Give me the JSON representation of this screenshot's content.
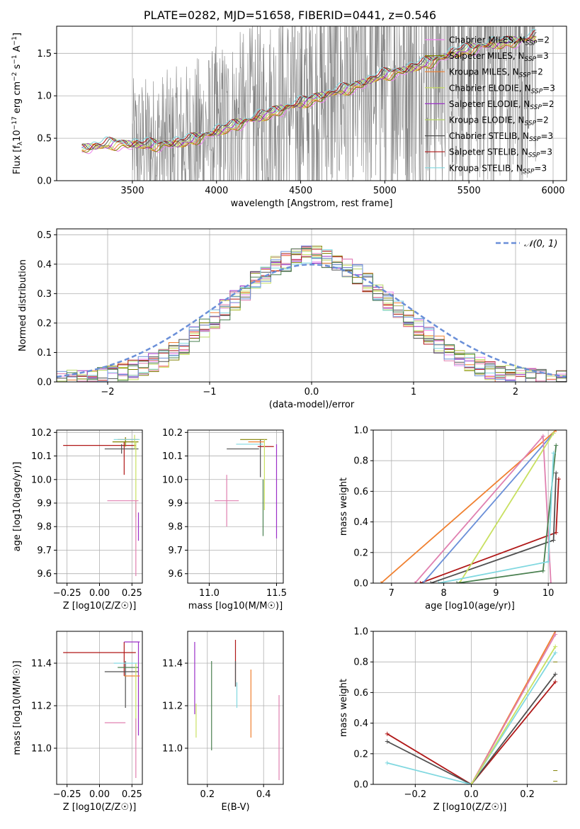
{
  "title": "PLATE=0282, MJD=51658, FIBERID=0441, z=0.546",
  "colors": {
    "Chabrier MILES": "#ee82ee",
    "Salpeter MILES": "#808000",
    "Kroupa MILES": "#f0a030",
    "Chabrier ELODIE": "#c8e060",
    "Salpeter ELODIE": "#9b30c8",
    "Kroupa ELODIE": "#b8d868",
    "Chabrier STELIB": "#505050",
    "Salpeter STELIB": "#b01818",
    "Kroupa STELIB": "#80d8e0",
    "data": "#808080",
    "normal": "#6a8fd8"
  },
  "chart_data": [
    {
      "type": "line",
      "id": "spectrum",
      "xlabel": "wavelength [Angstrom, rest frame]",
      "ylabel": "Flux [f_λ 10^-17 erg cm^-2 s^-1 A^-1]",
      "xlim": [
        3050,
        6080
      ],
      "ylim": [
        0,
        1.82
      ],
      "xticks": [
        3500,
        4000,
        4500,
        5000,
        5500,
        6000
      ],
      "yticks": [
        0.0,
        0.5,
        1.0,
        1.5
      ],
      "legend": [
        "Chabrier MILES, N_SSP=2",
        "Salpeter MILES, N_SSP=3",
        "Kroupa MILES, N_SSP=2",
        "Chabrier ELODIE, N_SSP=3",
        "Salpeter ELODIE, N_SSP=2",
        "Kroupa ELODIE, N_SSP=2",
        "Chabrier STELIB, N_SSP=3",
        "Salpeter STELIB, N_SSP=3",
        "Kroupa STELIB, N_SSP=3"
      ],
      "legend_placement": "right",
      "model_continuum": {
        "x": [
          3200,
          3400,
          3600,
          3800,
          4000,
          4200,
          4400,
          4600,
          4800,
          5000,
          5200,
          5400,
          5600,
          5800,
          5900
        ],
        "y": [
          0.38,
          0.44,
          0.42,
          0.45,
          0.58,
          0.72,
          0.85,
          0.98,
          1.1,
          1.25,
          1.35,
          1.5,
          1.6,
          1.65,
          1.7
        ]
      }
    },
    {
      "type": "bar",
      "id": "residuals",
      "xlabel": "(data-model)/error",
      "ylabel": "Normed distribution",
      "xlim": [
        -2.5,
        2.5
      ],
      "ylim": [
        0,
        0.52
      ],
      "xticks": [
        -2,
        -1,
        0,
        1,
        2
      ],
      "yticks": [
        0.0,
        0.1,
        0.2,
        0.3,
        0.4,
        0.5
      ],
      "legend": [
        "𝒩(0, 1)"
      ],
      "legend_placement": "top-right",
      "bin_width": 0.1
    },
    {
      "type": "scatter",
      "id": "age-z",
      "xlabel": "Z [log10(Z/Z☉)]",
      "ylabel": "age [log10(age/yr)]",
      "xlim": [
        -0.33,
        0.33
      ],
      "ylim": [
        9.56,
        10.21
      ],
      "xticks": [
        -0.25,
        0.0,
        0.25
      ],
      "yticks": [
        9.6,
        9.7,
        9.8,
        9.9,
        10.0,
        10.1,
        10.2
      ]
    },
    {
      "type": "scatter",
      "id": "age-mass",
      "xlabel": "mass [log10(M/M☉)]",
      "ylabel": "",
      "xlim": [
        10.84,
        11.55
      ],
      "ylim": [
        9.56,
        10.21
      ],
      "xticks": [
        11.0,
        11.5
      ],
      "yticks": [
        9.6,
        9.7,
        9.8,
        9.9,
        10.0,
        10.1,
        10.2
      ]
    },
    {
      "type": "line",
      "id": "weight-age",
      "xlabel": "age [log10(age/yr)]",
      "ylabel": "mass weight",
      "xlim": [
        6.65,
        10.35
      ],
      "ylim": [
        0,
        1.0
      ],
      "xticks": [
        7,
        8,
        9,
        10
      ],
      "yticks": [
        0.0,
        0.2,
        0.4,
        0.6,
        0.8,
        1.0
      ]
    },
    {
      "type": "scatter",
      "id": "mass-z",
      "xlabel": "Z [log10(Z/Z☉)]",
      "ylabel": "mass [log10(M/M☉)]",
      "xlim": [
        -0.33,
        0.33
      ],
      "ylim": [
        10.83,
        11.55
      ],
      "xticks": [
        -0.25,
        0.0,
        0.25
      ],
      "yticks": [
        11.0,
        11.2,
        11.4
      ]
    },
    {
      "type": "scatter",
      "id": "mass-ebv",
      "xlabel": "E(B-V)",
      "ylabel": "",
      "xlim": [
        0.13,
        0.47
      ],
      "ylim": [
        10.83,
        11.55
      ],
      "xticks": [
        0.2,
        0.4
      ],
      "yticks": [
        11.0,
        11.2,
        11.4
      ]
    },
    {
      "type": "line",
      "id": "weight-z",
      "xlabel": "Z [log10(Z/Z☉)]",
      "ylabel": "mass weight",
      "xlim": [
        -0.35,
        0.34
      ],
      "ylim": [
        0,
        1.0
      ],
      "xticks": [
        -0.2,
        0.0,
        0.2
      ],
      "yticks": [
        0.0,
        0.2,
        0.4,
        0.6,
        0.8,
        1.0
      ]
    }
  ]
}
